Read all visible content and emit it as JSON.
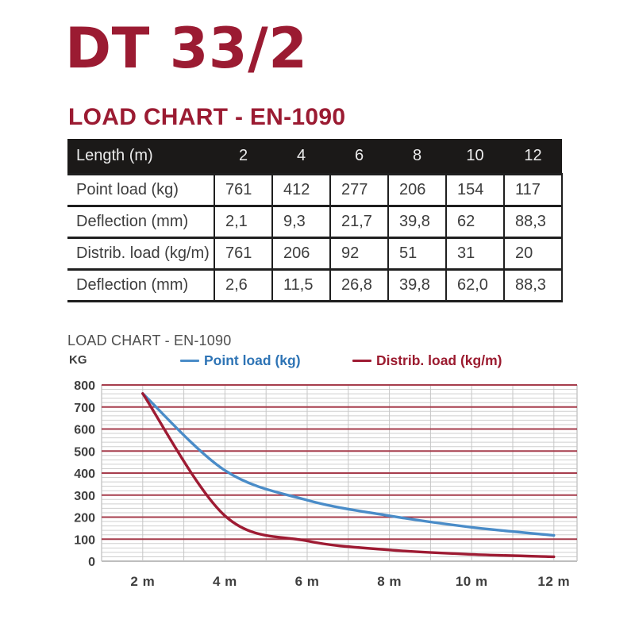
{
  "header": {
    "product_title": "DT 33/2",
    "section_heading": "LOAD CHART - EN-1090"
  },
  "colors": {
    "brand_red": "#9B1B32",
    "table_header_bg": "#1B1918",
    "table_header_text": "#ECECEC",
    "table_text": "#3D3D3D",
    "table_border": "#1F1F1F",
    "chart_title_text": "#4F4F4F",
    "axis_text": "#3F3F3F",
    "grid_major_red": "#A63D4C",
    "grid_minor_gray": "#CFCFCF",
    "grid_vertical_gray": "#C6C6C6",
    "grid_zero_line": "#A9A9A9"
  },
  "table": {
    "header": [
      "Length (m)",
      "2",
      "4",
      "6",
      "8",
      "10",
      "12"
    ],
    "rows": [
      {
        "label": "Point load (kg)",
        "values": [
          "761",
          "412",
          "277",
          "206",
          "154",
          "117"
        ]
      },
      {
        "label": "Deflection (mm)",
        "values": [
          "2,1",
          "9,3",
          "21,7",
          "39,8",
          "62",
          "88,3"
        ]
      },
      {
        "label": "Distrib. load (kg/m)",
        "values": [
          "761",
          "206",
          "92",
          "51",
          "31",
          "20"
        ]
      },
      {
        "label": "Deflection (mm)",
        "values": [
          "2,6",
          "11,5",
          "26,8",
          "39,8",
          "62,0",
          "88,3"
        ]
      }
    ]
  },
  "chart_data": {
    "type": "line",
    "title": "LOAD CHART - EN-1090",
    "y_axis_label": "KG",
    "x": [
      2,
      4,
      6,
      8,
      10,
      12
    ],
    "x_tick_labels": [
      "2 m",
      "4 m",
      "6 m",
      "8 m",
      "10 m",
      "12 m"
    ],
    "series": [
      {
        "name": "Point load (kg)",
        "values": [
          761,
          412,
          277,
          206,
          154,
          117
        ],
        "color": "#4A8CC8",
        "legend_text_color": "#2E74B5"
      },
      {
        "name": "Distrib. load (kg/m)",
        "values": [
          761,
          206,
          92,
          51,
          31,
          20
        ],
        "color": "#9E1B33",
        "legend_text_color": "#9B1B2F"
      }
    ],
    "ylim": [
      0,
      800
    ],
    "xlim": [
      1,
      12.56
    ],
    "y_major_step": 100,
    "y_minor_step": 20,
    "x_grid_step": 1,
    "grid": true,
    "legend_position": "top"
  }
}
